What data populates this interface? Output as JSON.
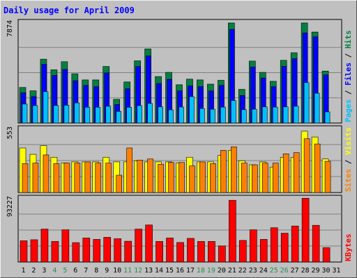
{
  "chart_data": {
    "type": "bar",
    "title": "Daily usage for April 2009",
    "categories": [
      "1",
      "2",
      "3",
      "4",
      "5",
      "6",
      "7",
      "8",
      "9",
      "10",
      "11",
      "12",
      "13",
      "14",
      "15",
      "16",
      "17",
      "18",
      "19",
      "20",
      "21",
      "22",
      "23",
      "24",
      "25",
      "26",
      "27",
      "28",
      "29",
      "30",
      "31"
    ],
    "weekend_days": [
      "4",
      "5",
      "11",
      "12",
      "18",
      "19",
      "25",
      "26"
    ],
    "panels": [
      {
        "name": "hits-files-pages",
        "max_label": "7874",
        "ylim": [
          0,
          7874
        ],
        "legend": [
          {
            "text": "Pages",
            "color": "#00c0ff"
          },
          {
            "text": " / ",
            "color": "#000000"
          },
          {
            "text": "Files",
            "color": "#0000ff"
          },
          {
            "text": " / ",
            "color": "#000000"
          },
          {
            "text": "Hits",
            "color": "#008040"
          }
        ],
        "series": [
          {
            "name": "Hits",
            "color": "#008040",
            "values": [
              2780,
              2520,
              4990,
              4160,
              4790,
              3850,
              3370,
              3370,
              4420,
              1850,
              3210,
              4860,
              5790,
              3630,
              3960,
              2990,
              3430,
              3370,
              3040,
              3340,
              7820,
              2630,
              4840,
              3960,
              3260,
              4900,
              5490,
              7820,
              7110,
              4060,
              0
            ]
          },
          {
            "name": "Files",
            "color": "#0000ff",
            "values": [
              2370,
              2070,
              4590,
              3720,
              4190,
              3310,
              2940,
              2840,
              3920,
              1450,
              2680,
              4420,
              5240,
              3090,
              3420,
              2520,
              2900,
              2850,
              2510,
              2940,
              7320,
              2150,
              4380,
              3520,
              2840,
              4430,
              5030,
              7040,
              6740,
              3760,
              0
            ]
          },
          {
            "name": "Pages",
            "color": "#00c0ff",
            "values": [
              1480,
              1360,
              2450,
              1370,
              1390,
              1570,
              1230,
              1230,
              1310,
              910,
              1230,
              1360,
              1530,
              1260,
              1030,
              1250,
              2060,
              1130,
              1080,
              1240,
              1760,
              1040,
              1080,
              1260,
              1240,
              1260,
              1310,
              3160,
              2330,
              870,
              0
            ]
          }
        ]
      },
      {
        "name": "visits-sites",
        "max_label": "553",
        "ylim": [
          0,
          553
        ],
        "legend": [
          {
            "text": "Sites",
            "color": "#ff8000"
          },
          {
            "text": " / ",
            "color": "#000000"
          },
          {
            "text": "Visits",
            "color": "#ffff00"
          }
        ],
        "series": [
          {
            "name": "Visits",
            "color": "#ffff00",
            "values": [
              385,
              330,
              405,
              305,
              255,
              265,
              265,
              265,
              305,
              265,
              265,
              275,
              265,
              265,
              265,
              255,
              305,
              265,
              265,
              320,
              365,
              275,
              240,
              265,
              220,
              305,
              305,
              530,
              480,
              290,
              0
            ]
          },
          {
            "name": "Sites",
            "color": "#ff8000",
            "values": [
              250,
              255,
              325,
              250,
              255,
              255,
              265,
              255,
              255,
              150,
              385,
              280,
              290,
              245,
              260,
              260,
              230,
              265,
              250,
              365,
              395,
              255,
              240,
              255,
              255,
              335,
              345,
              465,
              420,
              270,
              0
            ]
          }
        ]
      },
      {
        "name": "kbytes",
        "max_label": "93227",
        "ylim": [
          0,
          93227
        ],
        "legend": [
          {
            "text": "KBytes",
            "color": "#ff0000"
          }
        ],
        "series": [
          {
            "name": "KBytes",
            "color": "#ff0000",
            "values": [
              31000,
              32500,
              48000,
              30000,
              47000,
              28300,
              35000,
              33000,
              36000,
              34000,
              30300,
              48000,
              54000,
              30000,
              35000,
              28500,
              34500,
              30000,
              30000,
              23500,
              90000,
              31500,
              47000,
              33000,
              50000,
              42000,
              52500,
              93000,
              53500,
              21000,
              0
            ]
          }
        ]
      }
    ]
  }
}
